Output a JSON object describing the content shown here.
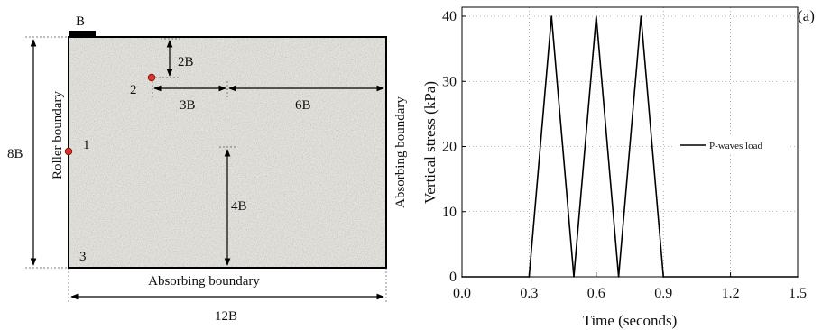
{
  "diagram": {
    "footing_label": "B",
    "dimensions": {
      "height": "8B",
      "width": "12B",
      "depth_2": "2B",
      "offset_3": "3B",
      "offset_6": "6B",
      "depth_4": "4B"
    },
    "boundaries": {
      "left": "Roller boundary",
      "right": "Absorbing boundary",
      "bottom": "Absorbing boundary"
    },
    "points": [
      "1",
      "2",
      "3"
    ],
    "colors": {
      "soil": "#e4e2dc",
      "point": "#e0302a"
    }
  },
  "chart_data": {
    "type": "line",
    "panel_label": "(a)",
    "xlabel": "Time (seconds)",
    "ylabel": "Vertical stress (kPa)",
    "xlim": [
      0,
      1.5
    ],
    "ylim": [
      0,
      40
    ],
    "xticks": [
      "0.0",
      "0.3",
      "0.6",
      "0.9",
      "1.2",
      "1.5"
    ],
    "yticks": [
      "0",
      "10",
      "20",
      "30",
      "40"
    ],
    "grid": true,
    "legend_position": "right",
    "series": [
      {
        "name": "P-waves load",
        "x": [
          0,
          0.3,
          0.4,
          0.5,
          0.6,
          0.7,
          0.8,
          0.9,
          1.5
        ],
        "y": [
          0,
          0,
          40,
          0,
          40,
          0,
          40,
          0,
          0
        ]
      }
    ]
  }
}
